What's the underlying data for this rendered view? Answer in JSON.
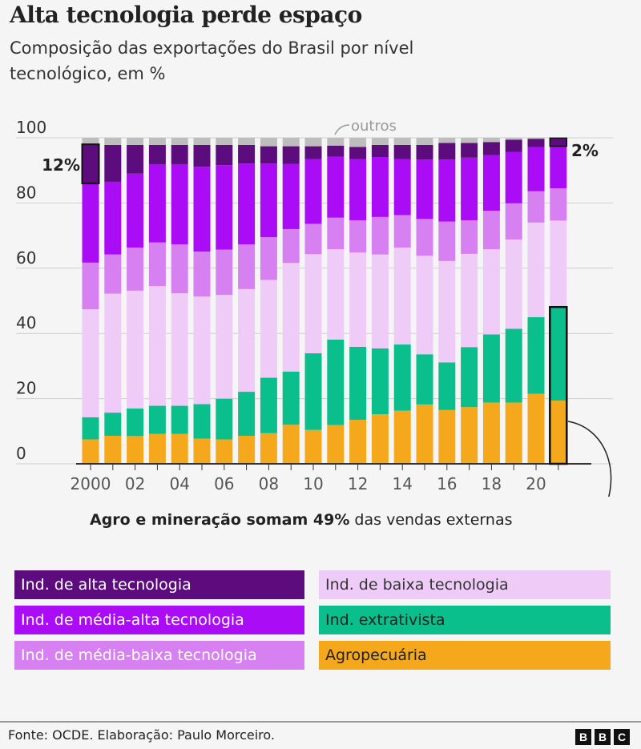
{
  "header": {
    "title": "Alta tecnologia perde espaço",
    "subtitle": "Composição das exportações do Brasil por nível tecnológico, em %"
  },
  "chart_data": {
    "type": "bar",
    "stacked": true,
    "title": "Alta tecnologia perde espaço",
    "subtitle": "Composição das exportações do Brasil por nível tecnológico, em %",
    "years": [
      2000,
      2001,
      2002,
      2003,
      2004,
      2005,
      2006,
      2007,
      2008,
      2009,
      2010,
      2011,
      2012,
      2013,
      2014,
      2015,
      2016,
      2017,
      2018,
      2019,
      2020,
      2021
    ],
    "x_tick_labels": [
      "2000",
      "",
      "02",
      "",
      "04",
      "",
      "06",
      "",
      "08",
      "",
      "10",
      "",
      "12",
      "",
      "14",
      "",
      "16",
      "",
      "18",
      "",
      "20",
      ""
    ],
    "y_ticks": [
      0,
      20,
      40,
      60,
      80,
      100
    ],
    "ylim": [
      0,
      100
    ],
    "grid": true,
    "series": [
      {
        "name": "Agropecuária",
        "color": "#f5a81c",
        "values": [
          7.5,
          8.6,
          8.5,
          9.2,
          9.2,
          7.7,
          7.5,
          8.6,
          9.4,
          12.0,
          10.4,
          11.9,
          13.5,
          15.2,
          16.3,
          18.2,
          16.5,
          17.4,
          18.8,
          18.8,
          21.5,
          19.4
        ]
      },
      {
        "name": "Ind. extrativista",
        "color": "#0bbf8c",
        "values": [
          6.8,
          7.1,
          8.5,
          8.6,
          8.6,
          10.6,
          12.5,
          13.5,
          17.0,
          16.3,
          23.5,
          26.2,
          22.4,
          20.2,
          20.3,
          15.4,
          14.6,
          18.4,
          20.9,
          22.6,
          23.5,
          28.7
        ]
      },
      {
        "name": "Ind. de baixa tecnologia",
        "color": "#efcbf8",
        "values": [
          33.1,
          36.5,
          36.1,
          36.7,
          34.5,
          33.0,
          31.8,
          31.5,
          30.0,
          33.3,
          30.4,
          27.7,
          28.9,
          28.8,
          29.7,
          30.2,
          31.1,
          28.6,
          26.1,
          27.4,
          29.0,
          26.5
        ]
      },
      {
        "name": "Ind. de média-baixa tecnologia",
        "color": "#d780f2",
        "values": [
          14.3,
          12.0,
          13.2,
          13.4,
          15.0,
          13.8,
          13.9,
          13.7,
          13.1,
          10.4,
          9.3,
          9.7,
          9.9,
          11.5,
          10.0,
          11.3,
          12.1,
          10.3,
          11.8,
          11.1,
          9.6,
          9.9
        ]
      },
      {
        "name": "Ind. de média-alta tecnologia",
        "color": "#aa0cf6",
        "values": [
          24.3,
          22.3,
          22.7,
          24.0,
          24.6,
          26.0,
          25.9,
          24.8,
          22.6,
          20.0,
          19.9,
          18.7,
          18.8,
          18.4,
          17.2,
          18.2,
          19.0,
          19.2,
          17.1,
          15.8,
          13.5,
          12.9
        ]
      },
      {
        "name": "Ind. de alta tecnologia",
        "color": "#5c0c7c",
        "values": [
          12.0,
          11.3,
          8.8,
          5.9,
          5.9,
          6.7,
          6.2,
          5.7,
          5.3,
          5.4,
          3.9,
          3.4,
          3.7,
          3.7,
          4.3,
          4.5,
          5.1,
          4.5,
          4.0,
          3.7,
          2.6,
          2.5
        ]
      },
      {
        "name": "outros",
        "color": "#bdbdbd",
        "values": [
          2.0,
          2.2,
          2.2,
          2.2,
          2.2,
          2.2,
          2.2,
          2.2,
          2.6,
          2.6,
          2.6,
          2.4,
          2.8,
          2.2,
          2.2,
          2.2,
          1.6,
          1.6,
          1.3,
          0.6,
          0.3,
          0.1
        ]
      }
    ],
    "annotations": {
      "outros_label": "outros",
      "high_2000": "12%",
      "high_2021": "2%"
    }
  },
  "note": {
    "bold": "Agro e mineração somam 49%",
    "rest": " das vendas externas"
  },
  "legend": [
    {
      "label": "Ind. de alta tecnologia",
      "bg": "#5c0c7c",
      "fg": "#ffffff"
    },
    {
      "label": "Ind. de baixa tecnologia",
      "bg": "#efcbf8",
      "fg": "#333333"
    },
    {
      "label": "Ind. de média-alta tecnologia",
      "bg": "#aa0cf6",
      "fg": "#ffffff"
    },
    {
      "label": "Ind. extrativista",
      "bg": "#0bbf8c",
      "fg": "#222222"
    },
    {
      "label": "Ind. de média-baixa tecnologia",
      "bg": "#d780f2",
      "fg": "#ffffff"
    },
    {
      "label": "Agropecuária",
      "bg": "#f5a81c",
      "fg": "#222222"
    }
  ],
  "footer": {
    "source": "Fonte: OCDE. Elaboração: Paulo Morceiro.",
    "logo": [
      "B",
      "B",
      "C"
    ]
  }
}
